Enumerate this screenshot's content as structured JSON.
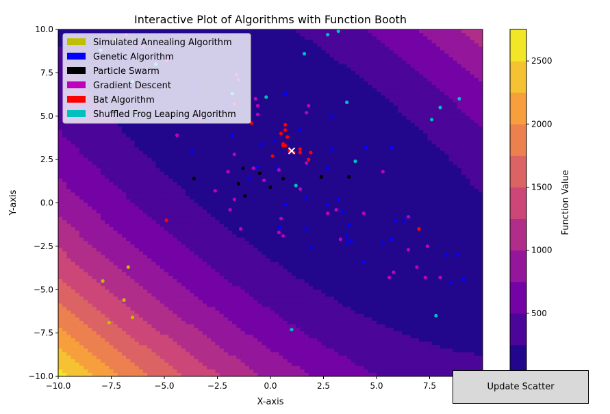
{
  "button": {
    "label": "Update Scatter"
  },
  "chart_data": {
    "type": "scatter",
    "title": "Interactive Plot of Algorithms with Function Booth",
    "xlabel": "X-axis",
    "ylabel": "Y-axis",
    "xlim": [
      -10,
      10
    ],
    "ylim": [
      -10,
      10
    ],
    "x_ticks": [
      "−10.0",
      "−7.5",
      "−5.0",
      "−2.5",
      "0.0",
      "2.5",
      "5.0",
      "7.5",
      "10.0"
    ],
    "y_ticks": [
      "−10.0",
      "−7.5",
      "−5.0",
      "−2.5",
      "0.0",
      "2.5",
      "5.0",
      "7.5",
      "10.0"
    ],
    "legend_position": "upper-left",
    "grid": false,
    "function": "booth",
    "colorbar": {
      "label": "Function Value",
      "vmin": 0,
      "vmax": 2750,
      "ticks": [
        "500",
        "1000",
        "1500",
        "2000",
        "2500"
      ],
      "colormap": "plasma"
    },
    "optimum": {
      "x": 1,
      "y": 3
    },
    "series": [
      {
        "name": "Simulated Annealing Algorithm",
        "color": "#bfbf00",
        "points": [
          [
            -7.3,
            9.4
          ],
          [
            -7.9,
            -4.5
          ],
          [
            -7.6,
            -6.9
          ],
          [
            -6.9,
            -5.6
          ],
          [
            -6.7,
            -3.7
          ],
          [
            -6.5,
            -6.6
          ]
        ]
      },
      {
        "name": "Genetic Algorithm",
        "color": "#0000ff",
        "points": [
          [
            -3.6,
            6.5
          ],
          [
            -2.2,
            5.6
          ],
          [
            -2.9,
            4.7
          ],
          [
            -3.7,
            3.0
          ],
          [
            -1.8,
            3.9
          ],
          [
            -0.4,
            3.4
          ],
          [
            0.2,
            3.6
          ],
          [
            0.7,
            6.3
          ],
          [
            2.9,
            5.0
          ],
          [
            4.5,
            3.2
          ],
          [
            5.7,
            3.2
          ],
          [
            2.9,
            3.1
          ],
          [
            -0.6,
            2.1
          ],
          [
            0.3,
            2.0
          ],
          [
            1.4,
            4.2
          ],
          [
            2.7,
            2.0
          ],
          [
            -1.0,
            1.4
          ],
          [
            0.7,
            -0.1
          ],
          [
            1.7,
            0.3
          ],
          [
            2.7,
            -0.1
          ],
          [
            3.2,
            0.2
          ],
          [
            3.4,
            -0.5
          ],
          [
            3.7,
            -1.3
          ],
          [
            3.6,
            -1.9
          ],
          [
            3.6,
            -2.3
          ],
          [
            3.8,
            -2.2
          ],
          [
            1.7,
            -1.5
          ],
          [
            1.9,
            -2.6
          ],
          [
            0.4,
            -1.4
          ],
          [
            4.4,
            -3.4
          ],
          [
            5.3,
            -2.3
          ],
          [
            5.7,
            -2.1
          ],
          [
            5.9,
            -1.0
          ],
          [
            6.3,
            -1.0
          ],
          [
            8.3,
            -3.0
          ],
          [
            8.8,
            -3.0
          ],
          [
            8.5,
            -4.6
          ],
          [
            9.1,
            -4.4
          ]
        ]
      },
      {
        "name": "Particle Swarm",
        "color": "#000000",
        "points": [
          [
            -3.6,
            1.4
          ],
          [
            -1.3,
            2.0
          ],
          [
            -1.5,
            1.1
          ],
          [
            -1.2,
            0.4
          ],
          [
            -0.5,
            1.7
          ],
          [
            0.0,
            0.9
          ],
          [
            0.6,
            1.4
          ],
          [
            2.4,
            1.5
          ],
          [
            3.7,
            1.5
          ]
        ]
      },
      {
        "name": "Gradient Descent",
        "color": "#bf00bf",
        "points": [
          [
            -6.8,
            9.7
          ],
          [
            -6.0,
            9.0
          ],
          [
            -4.9,
            8.2
          ],
          [
            -1.6,
            7.4
          ],
          [
            -1.5,
            7.1
          ],
          [
            -0.7,
            6.0
          ],
          [
            -0.6,
            5.6
          ],
          [
            -1.7,
            5.7
          ],
          [
            -0.6,
            5.1
          ],
          [
            -3.3,
            4.9
          ],
          [
            -4.4,
            3.9
          ],
          [
            -1.7,
            2.8
          ],
          [
            -2.0,
            1.8
          ],
          [
            -0.8,
            2.0
          ],
          [
            -0.3,
            1.3
          ],
          [
            0.4,
            1.9
          ],
          [
            1.4,
            0.8
          ],
          [
            1.7,
            2.3
          ],
          [
            1.8,
            5.6
          ],
          [
            1.7,
            5.2
          ],
          [
            -2.6,
            0.7
          ],
          [
            -1.7,
            0.2
          ],
          [
            -1.9,
            -0.4
          ],
          [
            -1.4,
            -1.5
          ],
          [
            0.5,
            -0.9
          ],
          [
            0.4,
            -1.7
          ],
          [
            0.6,
            -1.9
          ],
          [
            2.7,
            -0.6
          ],
          [
            3.1,
            -0.4
          ],
          [
            3.3,
            -2.1
          ],
          [
            4.4,
            -0.6
          ],
          [
            5.3,
            1.8
          ],
          [
            6.5,
            -0.8
          ],
          [
            6.5,
            -2.7
          ],
          [
            7.4,
            -2.5
          ],
          [
            6.9,
            -3.7
          ],
          [
            7.3,
            -4.3
          ],
          [
            8.0,
            -4.3
          ],
          [
            5.6,
            -4.3
          ],
          [
            5.8,
            -4.0
          ]
        ]
      },
      {
        "name": "Bat Algorithm",
        "color": "#ff0000",
        "points": [
          [
            -0.9,
            4.6
          ],
          [
            0.7,
            4.5
          ],
          [
            0.7,
            4.2
          ],
          [
            0.5,
            4.0
          ],
          [
            0.8,
            3.8
          ],
          [
            0.6,
            3.4
          ],
          [
            0.6,
            3.3
          ],
          [
            0.7,
            3.3
          ],
          [
            0.9,
            3.0
          ],
          [
            1.1,
            2.9
          ],
          [
            1.4,
            3.1
          ],
          [
            1.4,
            2.9
          ],
          [
            1.9,
            2.9
          ],
          [
            1.8,
            2.5
          ],
          [
            0.1,
            2.7
          ],
          [
            -4.9,
            -1.0
          ],
          [
            7.0,
            -1.5
          ]
        ]
      },
      {
        "name": "Shuffled Frog Leaping Algorithm",
        "color": "#00bfbf",
        "points": [
          [
            -8.0,
            8.8
          ],
          [
            -5.4,
            8.0
          ],
          [
            -6.5,
            7.0
          ],
          [
            -6.3,
            5.1
          ],
          [
            -1.8,
            6.3
          ],
          [
            -0.2,
            6.1
          ],
          [
            1.6,
            8.6
          ],
          [
            2.7,
            9.7
          ],
          [
            3.2,
            9.9
          ],
          [
            3.6,
            5.8
          ],
          [
            4.0,
            2.4
          ],
          [
            1.2,
            1.0
          ],
          [
            7.6,
            4.8
          ],
          [
            8.0,
            5.5
          ],
          [
            8.9,
            6.0
          ],
          [
            7.8,
            -6.5
          ],
          [
            1.0,
            -7.3
          ]
        ]
      }
    ]
  }
}
